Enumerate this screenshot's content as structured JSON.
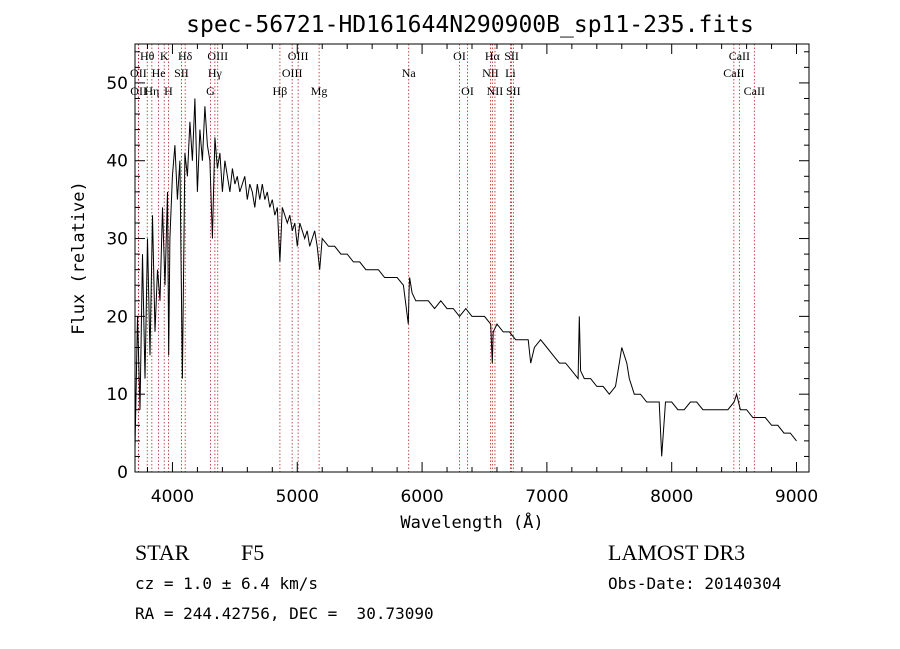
{
  "chart_data": {
    "type": "line",
    "title": "spec-56721-HD161644N290900B_sp11-235.fits",
    "xlabel": "Wavelength (Å)",
    "ylabel": "Flux (relative)",
    "xlim": [
      3700,
      9100
    ],
    "ylim": [
      0,
      55
    ],
    "x_ticks": [
      4000,
      5000,
      6000,
      7000,
      8000,
      9000
    ],
    "y_ticks": [
      0,
      10,
      20,
      30,
      40,
      50
    ],
    "x_minor_step": 200,
    "y_minor_step": 2,
    "series": [
      {
        "name": "flux",
        "x": [
          3700,
          3720,
          3740,
          3760,
          3780,
          3800,
          3820,
          3840,
          3860,
          3880,
          3900,
          3920,
          3940,
          3960,
          3970,
          3980,
          4000,
          4020,
          4040,
          4060,
          4080,
          4100,
          4120,
          4140,
          4160,
          4180,
          4200,
          4220,
          4240,
          4260,
          4280,
          4300,
          4320,
          4340,
          4360,
          4380,
          4400,
          4420,
          4440,
          4460,
          4480,
          4500,
          4520,
          4540,
          4560,
          4580,
          4600,
          4620,
          4640,
          4660,
          4680,
          4700,
          4720,
          4740,
          4760,
          4780,
          4800,
          4820,
          4840,
          4861,
          4880,
          4900,
          4920,
          4940,
          4960,
          4980,
          5000,
          5020,
          5040,
          5060,
          5080,
          5100,
          5120,
          5140,
          5160,
          5180,
          5200,
          5250,
          5300,
          5350,
          5400,
          5450,
          5500,
          5550,
          5600,
          5650,
          5700,
          5750,
          5800,
          5850,
          5890,
          5895,
          5900,
          5920,
          5950,
          6000,
          6050,
          6100,
          6150,
          6200,
          6250,
          6300,
          6350,
          6400,
          6450,
          6500,
          6550,
          6563,
          6570,
          6600,
          6650,
          6700,
          6750,
          6800,
          6850,
          6870,
          6900,
          6950,
          7000,
          7050,
          7100,
          7150,
          7200,
          7250,
          7260,
          7270,
          7300,
          7350,
          7400,
          7450,
          7500,
          7550,
          7580,
          7600,
          7620,
          7640,
          7660,
          7700,
          7750,
          7800,
          7850,
          7900,
          7920,
          7950,
          8000,
          8050,
          8100,
          8150,
          8200,
          8250,
          8300,
          8350,
          8400,
          8450,
          8500,
          8520,
          8550,
          8600,
          8650,
          8700,
          8750,
          8800,
          8850,
          8900,
          8950,
          9000
        ],
        "y": [
          3,
          20,
          8,
          28,
          12,
          30,
          15,
          33,
          18,
          26,
          22,
          34,
          24,
          36,
          15,
          30,
          38,
          42,
          35,
          40,
          12,
          41,
          38,
          45,
          40,
          48,
          36,
          44,
          40,
          47,
          42,
          40,
          30,
          43,
          39,
          41,
          36,
          40,
          38,
          36,
          39,
          37,
          38,
          36,
          37,
          38,
          35,
          37,
          36,
          34,
          37,
          35,
          37,
          35,
          36,
          34,
          35,
          33,
          34,
          27,
          34,
          33,
          32,
          33,
          31,
          32,
          29,
          32,
          31,
          30,
          31,
          29,
          30,
          31,
          29,
          26,
          30,
          29,
          29,
          28,
          28,
          27,
          27,
          26,
          26,
          26,
          25,
          25,
          25,
          24,
          19,
          23,
          25,
          23,
          22,
          22,
          22,
          21,
          22,
          21,
          21,
          20,
          21,
          20,
          20,
          20,
          19,
          14,
          18,
          19,
          18,
          18,
          17,
          17,
          17,
          14,
          16,
          17,
          16,
          15,
          14,
          14,
          13,
          12,
          20,
          13,
          12,
          12,
          11,
          11,
          10,
          11,
          14,
          16,
          15,
          14,
          12,
          10,
          10,
          9,
          9,
          9,
          2,
          9,
          9,
          8,
          8,
          9,
          9,
          8,
          8,
          8,
          8,
          8,
          9,
          10,
          8,
          8,
          7,
          7,
          7,
          6,
          6,
          5,
          5,
          4
        ]
      }
    ],
    "lines": [
      {
        "label": "Hθ",
        "wl": 3798,
        "row": 1
      },
      {
        "label": "OII",
        "wl": 3727,
        "row": 2
      },
      {
        "label": "OII",
        "wl": 3729,
        "row": 3
      },
      {
        "label": "Hη",
        "wl": 3835,
        "row": 3
      },
      {
        "label": "He",
        "wl": 3889,
        "row": 2
      },
      {
        "label": "K",
        "wl": 3934,
        "row": 1
      },
      {
        "label": "H",
        "wl": 3968,
        "row": 3
      },
      {
        "label": "SII",
        "wl": 4072,
        "row": 2
      },
      {
        "label": "Hδ",
        "wl": 4102,
        "row": 1
      },
      {
        "label": "OIII",
        "wl": 4363,
        "row": 1
      },
      {
        "label": "Hγ",
        "wl": 4340,
        "row": 2
      },
      {
        "label": "G",
        "wl": 4305,
        "row": 3
      },
      {
        "label": "Hβ",
        "wl": 4861,
        "row": 3
      },
      {
        "label": "OIII",
        "wl": 5007,
        "row": 1
      },
      {
        "label": "OIII",
        "wl": 4959,
        "row": 2
      },
      {
        "label": "Mg",
        "wl": 5175,
        "row": 3
      },
      {
        "label": "Na",
        "wl": 5893,
        "row": 2
      },
      {
        "label": "OI",
        "wl": 6300,
        "row": 1
      },
      {
        "label": "OI",
        "wl": 6364,
        "row": 3
      },
      {
        "label": "Hα",
        "wl": 6563,
        "row": 1
      },
      {
        "label": "NII",
        "wl": 6548,
        "row": 2
      },
      {
        "label": "NII",
        "wl": 6584,
        "row": 3
      },
      {
        "label": "SII",
        "wl": 6717,
        "row": 1
      },
      {
        "label": "Li",
        "wl": 6708,
        "row": 2
      },
      {
        "label": "SII",
        "wl": 6731,
        "row": 3
      },
      {
        "label": "CaII",
        "wl": 8542,
        "row": 1
      },
      {
        "label": "CaII",
        "wl": 8498,
        "row": 2
      },
      {
        "label": "CaII",
        "wl": 8662,
        "row": 3
      }
    ]
  },
  "info": {
    "object_type": "STAR",
    "subclass": "F5",
    "survey": "LAMOST DR3",
    "cz": "cz = 1.0 ± 6.4 km/s",
    "obs_date": "Obs-Date: 20140304",
    "coords": "RA = 244.42756, DEC =  30.73090"
  },
  "colors": {
    "line_marker": "#b22222",
    "ink": "#000000"
  }
}
